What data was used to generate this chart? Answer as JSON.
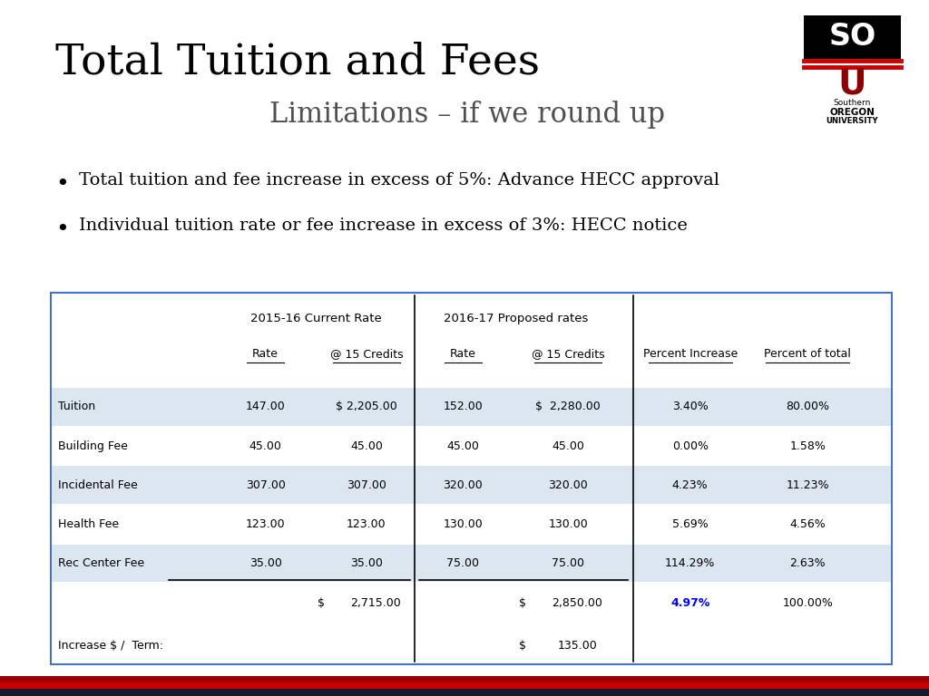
{
  "title": "Total Tuition and Fees",
  "subtitle": "Limitations – if we round up",
  "bullet1": "Total tuition and fee increase in excess of 5%: Advance HECC approval",
  "bullet2": "Individual tuition rate or fee increase in excess of 3%: HECC notice",
  "table_header1": "2015-16 Current Rate",
  "table_header2": "2016-17 Proposed rates",
  "col_headers": [
    "Rate",
    "@ 15 Credits",
    "Rate",
    "@ 15 Credits",
    "Percent Increase",
    "Percent of total"
  ],
  "rows": [
    [
      "Tuition",
      "147.00",
      "$ 2,205.00",
      "152.00",
      "$  2,280.00",
      "3.40%",
      "80.00%"
    ],
    [
      "Building Fee",
      "45.00",
      "45.00",
      "45.00",
      "45.00",
      "0.00%",
      "1.58%"
    ],
    [
      "Incidental Fee",
      "307.00",
      "307.00",
      "320.00",
      "320.00",
      "4.23%",
      "11.23%"
    ],
    [
      "Health Fee",
      "123.00",
      "123.00",
      "130.00",
      "130.00",
      "5.69%",
      "4.56%"
    ],
    [
      "Rec Center Fee",
      "35.00",
      "35.00",
      "75.00",
      "75.00",
      "114.29%",
      "2.63%"
    ]
  ],
  "total_row_left": [
    "$",
    "2,715.00"
  ],
  "total_row_right": [
    "$",
    "2,850.00"
  ],
  "total_pct": "4.97%",
  "total_pct_total": "100.00%",
  "increase_label": "Increase $ /  Term:",
  "increase_val": [
    "$",
    "135.00"
  ],
  "shaded_rows": [
    0,
    2,
    4
  ],
  "shade_color": "#dce6f1",
  "border_color": "#4472c4",
  "total_pct_color": "#0000ff",
  "bg_color": "#ffffff",
  "title_color": "#000000",
  "subtitle_color": "#505050",
  "text_color": "#000000"
}
